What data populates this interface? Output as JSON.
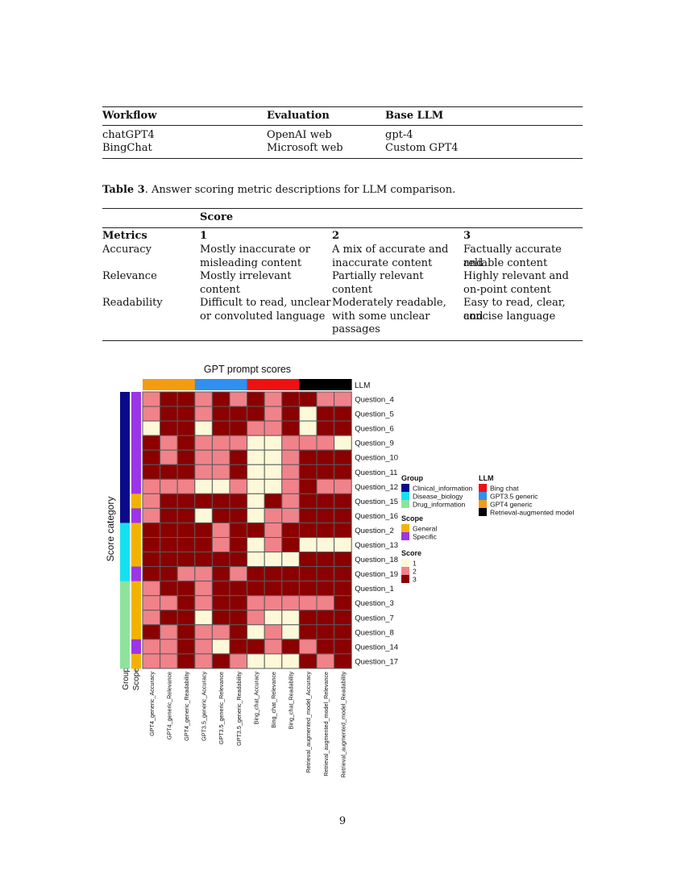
{
  "table2": {
    "headers": [
      "Workflow",
      "Evaluation",
      "Base LLM"
    ],
    "rows": [
      [
        "chatGPT4",
        "OpenAI web",
        "gpt-4"
      ],
      [
        "BingChat",
        "Microsoft web",
        "Custom GPT4"
      ]
    ]
  },
  "table3": {
    "caption_label": "Table 3",
    "caption_text": ". Answer scoring metric descriptions for LLM comparison.",
    "score_header": "Score",
    "metrics_header": "Metrics",
    "score_cols": [
      "1",
      "2",
      "3"
    ],
    "rows": [
      {
        "metric": "Accuracy",
        "s1": [
          "Mostly inaccurate or",
          "misleading content"
        ],
        "s2": [
          "A mix of accurate and",
          "inaccurate content"
        ],
        "s3": [
          "Factually accurate and",
          "reliable content"
        ]
      },
      {
        "metric": "Relevance",
        "s1": [
          "Mostly irrelevant",
          "content"
        ],
        "s2": [
          "Partially relevant",
          "content"
        ],
        "s3": [
          "Highly relevant and",
          "on-point content"
        ]
      },
      {
        "metric": "Readability",
        "s1": [
          "Difficult to read, unclear",
          "or convoluted language"
        ],
        "s2": [
          "Moderately readable,",
          "with some unclear",
          "passages"
        ],
        "s3": [
          "Easy to read, clear, and",
          "concise language"
        ]
      }
    ]
  },
  "chart_data": {
    "type": "heatmap",
    "title": "GPT prompt scores",
    "ylabel": "Score category",
    "llm_annotation_label": "LLM",
    "bottom_annotation_labels": [
      "Group",
      "Scope"
    ],
    "columns": [
      "GPT4_generic_Accuracy",
      "GPT4_generic_Relevance",
      "GPT4_generic_Readability",
      "GPT3.5_generic_Accuracy",
      "GPT3.5_generic_Relevance",
      "GPT3.5_generic_Readability",
      "Bing_chat_Accuracy",
      "Bing_chat_Relevance",
      "Bing_chat_Readability",
      "Retrieval_augmented_model_Accuracy",
      "Retrieval_augmented_model_Relevance",
      "Retrieval_augmented_model_Readability"
    ],
    "column_llm": [
      "GPT4 generic",
      "GPT4 generic",
      "GPT4 generic",
      "GPT3.5 generic",
      "GPT3.5 generic",
      "GPT3.5 generic",
      "Bing chat",
      "Bing chat",
      "Bing chat",
      "Retrieval-augmented model",
      "Retrieval-augmented model",
      "Retrieval-augmented model"
    ],
    "rows": [
      "Question_4",
      "Question_5",
      "Question_6",
      "Question_9",
      "Question_10",
      "Question_11",
      "Question_12",
      "Question_15",
      "Question_16",
      "Question_2",
      "Question_13",
      "Question_18",
      "Question_19",
      "Question_1",
      "Question_3",
      "Question_7",
      "Question_8",
      "Question_14",
      "Question_17"
    ],
    "row_group": [
      "Clinical_information",
      "Clinical_information",
      "Clinical_information",
      "Clinical_information",
      "Clinical_information",
      "Clinical_information",
      "Clinical_information",
      "Clinical_information",
      "Clinical_information",
      "Disease_biology",
      "Disease_biology",
      "Disease_biology",
      "Disease_biology",
      "Drug_information",
      "Drug_information",
      "Drug_information",
      "Drug_information",
      "Drug_information",
      "Drug_information"
    ],
    "row_scope": [
      "Specific",
      "Specific",
      "Specific",
      "Specific",
      "Specific",
      "Specific",
      "Specific",
      "General",
      "Specific",
      "General",
      "General",
      "General",
      "Specific",
      "General",
      "General",
      "General",
      "General",
      "Specific",
      "General"
    ],
    "values": [
      [
        2,
        3,
        3,
        2,
        3,
        2,
        3,
        2,
        3,
        3,
        2,
        2
      ],
      [
        2,
        3,
        3,
        2,
        3,
        3,
        3,
        2,
        3,
        1,
        3,
        3
      ],
      [
        1,
        3,
        3,
        1,
        3,
        3,
        2,
        2,
        3,
        1,
        3,
        3
      ],
      [
        3,
        2,
        3,
        2,
        2,
        2,
        1,
        1,
        2,
        2,
        2,
        1
      ],
      [
        3,
        2,
        3,
        2,
        2,
        3,
        1,
        1,
        2,
        3,
        3,
        3
      ],
      [
        3,
        3,
        3,
        2,
        2,
        3,
        1,
        1,
        2,
        3,
        3,
        3
      ],
      [
        2,
        2,
        2,
        1,
        1,
        2,
        1,
        1,
        2,
        3,
        2,
        2
      ],
      [
        2,
        3,
        3,
        3,
        3,
        3,
        1,
        3,
        2,
        3,
        3,
        3
      ],
      [
        2,
        3,
        3,
        1,
        3,
        3,
        1,
        2,
        2,
        3,
        3,
        3
      ],
      [
        3,
        3,
        3,
        3,
        2,
        3,
        3,
        2,
        3,
        3,
        3,
        3
      ],
      [
        3,
        3,
        3,
        3,
        2,
        3,
        1,
        2,
        3,
        1,
        1,
        1
      ],
      [
        3,
        3,
        3,
        3,
        3,
        3,
        1,
        1,
        1,
        3,
        3,
        3
      ],
      [
        3,
        3,
        2,
        2,
        3,
        2,
        3,
        3,
        3,
        3,
        3,
        3
      ],
      [
        2,
        3,
        3,
        2,
        3,
        3,
        3,
        3,
        3,
        3,
        3,
        3
      ],
      [
        2,
        2,
        3,
        2,
        3,
        3,
        2,
        2,
        2,
        2,
        2,
        3
      ],
      [
        2,
        3,
        3,
        1,
        3,
        3,
        2,
        1,
        1,
        3,
        3,
        3
      ],
      [
        3,
        2,
        3,
        2,
        2,
        3,
        1,
        2,
        1,
        3,
        3,
        3
      ],
      [
        2,
        2,
        3,
        2,
        1,
        3,
        3,
        2,
        3,
        2,
        3,
        3
      ],
      [
        2,
        2,
        3,
        2,
        3,
        2,
        1,
        1,
        1,
        3,
        2,
        3
      ]
    ],
    "legend": {
      "group_title": "Group",
      "groups": [
        {
          "name": "Clinical_information",
          "color": "#0a0a8a"
        },
        {
          "name": "Disease_biology",
          "color": "#16e0f0"
        },
        {
          "name": "Drug_information",
          "color": "#8ee39a"
        }
      ],
      "scope_title": "Scope",
      "scopes": [
        {
          "name": "General",
          "color": "#f2b300"
        },
        {
          "name": "Specific",
          "color": "#9b35e6"
        }
      ],
      "score_title": "Score",
      "scores": [
        {
          "name": "1",
          "color": "#fdf8d8"
        },
        {
          "name": "2",
          "color": "#f0828a"
        },
        {
          "name": "3",
          "color": "#8b0000"
        }
      ],
      "llm_title": "LLM",
      "llms": [
        {
          "name": "Bing chat",
          "color": "#ee1111"
        },
        {
          "name": "GPT3.5 generic",
          "color": "#2f90f0"
        },
        {
          "name": "GPT4 generic",
          "color": "#f39c12"
        },
        {
          "name": "Retrieval-augmented model",
          "color": "#000000"
        }
      ]
    }
  },
  "page_number": "9"
}
